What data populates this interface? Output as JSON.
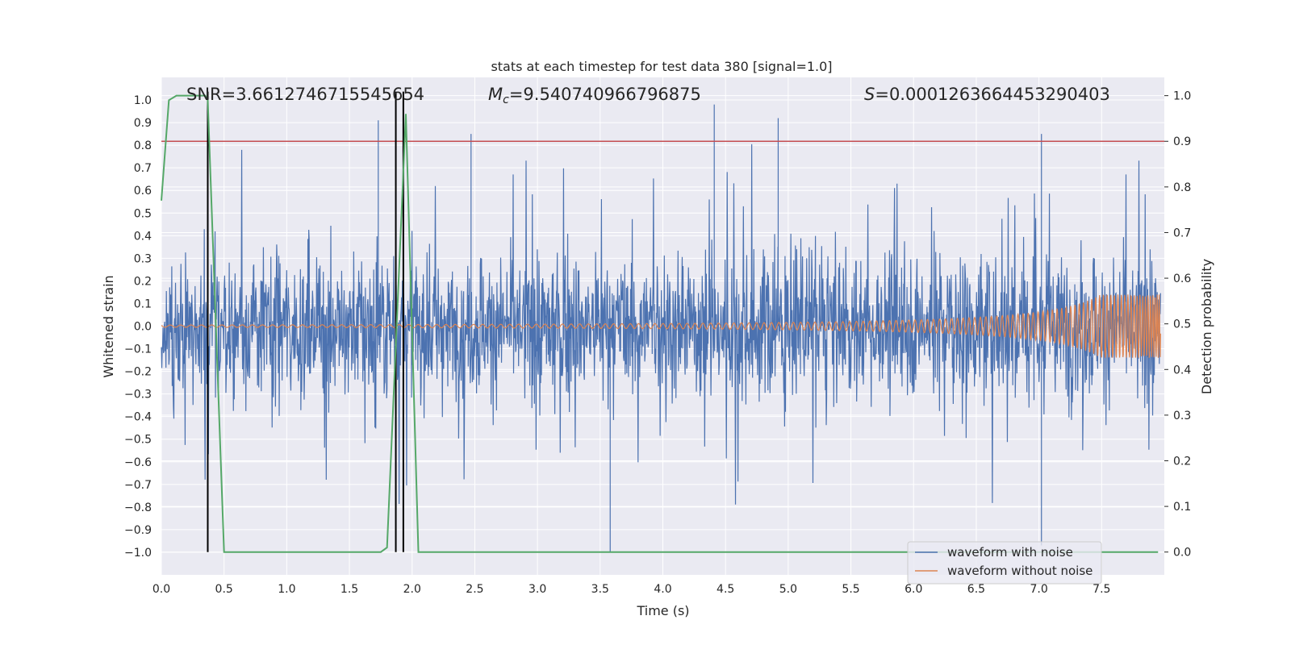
{
  "chart_data": {
    "type": "line",
    "title": "stats at each timestep for test data 380 [signal=1.0]",
    "xlabel": "Time (s)",
    "ylabel_left": "Whitened strain",
    "ylabel_right": "Detection probability",
    "xlim": [
      0.0,
      8.0
    ],
    "ylim_left": [
      -1.1,
      1.1
    ],
    "ylim_right": [
      -0.05,
      1.04
    ],
    "xticks": [
      "0.0",
      "0.5",
      "1.0",
      "1.5",
      "2.0",
      "2.5",
      "3.0",
      "3.5",
      "4.0",
      "4.5",
      "5.0",
      "5.5",
      "6.0",
      "6.5",
      "7.0",
      "7.5"
    ],
    "yticks_left": [
      "1.0",
      "0.9",
      "0.8",
      "0.7",
      "0.6",
      "0.5",
      "0.4",
      "0.3",
      "0.2",
      "0.1",
      "0.0",
      "−0.1",
      "−0.2",
      "−0.3",
      "−0.4",
      "−0.5",
      "−0.6",
      "−0.7",
      "−0.8",
      "−0.9",
      "−1.0"
    ],
    "yticks_right": [
      "1.0",
      "0.9",
      "0.8",
      "0.7",
      "0.6",
      "0.5",
      "0.4",
      "0.3",
      "0.2",
      "0.1",
      "0.0"
    ],
    "annotations": {
      "snr": "SNR=3.6612746715545654",
      "mc_symbol": "M",
      "mc_sub": "c",
      "mc_value": "=9.540740966796875",
      "s_symbol": "S",
      "s_value": "=0.0001263664453290403"
    },
    "threshold": {
      "axis": "right",
      "value": 0.9,
      "color": "#c44e52"
    },
    "detection_events": [
      0.37,
      1.87,
      1.93
    ],
    "series": [
      {
        "name": "waveform with noise",
        "color": "#4c72b0",
        "axis": "left",
        "summary": "dense noise, roughly within -0.75 to 0.85, extremes near 0.98 and -1.0"
      },
      {
        "name": "waveform without noise",
        "color": "#dd8452",
        "axis": "left",
        "summary": "chirp oscillation, amplitude growing from ~0.005 to ~0.14 at t=7.97"
      },
      {
        "name": "detection probability",
        "color": "#55a868",
        "axis": "right",
        "x": [
          0.0,
          0.06,
          0.12,
          0.35,
          0.37,
          0.5,
          1.75,
          1.8,
          1.95,
          2.05,
          7.95
        ],
        "y": [
          0.77,
          0.99,
          1.0,
          1.0,
          0.99,
          0.0,
          0.0,
          0.01,
          0.96,
          0.0,
          0.0
        ]
      }
    ],
    "legend": {
      "position": "lower-right",
      "entries": [
        "waveform with noise",
        "waveform without noise"
      ]
    }
  }
}
